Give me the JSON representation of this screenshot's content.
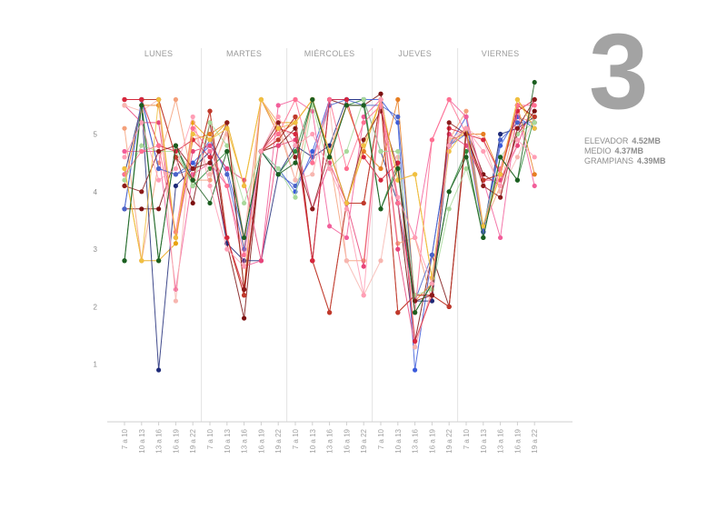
{
  "episode_number": "3",
  "stats": [
    {
      "label": "ELEVADOR",
      "value": "4.52MB"
    },
    {
      "label": "MEDIO",
      "value": "4.37MB"
    },
    {
      "label": "GRAMPIANS",
      "value": "4.39MB"
    }
  ],
  "chart_data": {
    "type": "line",
    "days": [
      "LUNES",
      "MARTES",
      "MIÉRCOLES",
      "JUEVES",
      "VIERNES"
    ],
    "slots": [
      "7 a 10",
      "10 a 13",
      "13 a 16",
      "16 a 19",
      "19 a 22"
    ],
    "yticks": [
      1,
      2,
      3,
      4,
      5
    ],
    "ylim": [
      0,
      5.9
    ],
    "series": [
      {
        "color": "#c0392b",
        "values": [
          5.6,
          5.6,
          5.6,
          4.6,
          4.2,
          5.4,
          3.2,
          2.2,
          4.7,
          4.9,
          5.3,
          2.8,
          1.9,
          3.8,
          3.8,
          5.6,
          1.9,
          2.2,
          2.2,
          2.0,
          5.0,
          4.2,
          4.3,
          5.5,
          5.3
        ]
      },
      {
        "color": "#7b1010",
        "values": [
          3.7,
          3.7,
          3.7,
          4.6,
          3.8,
          5.2,
          3.1,
          1.8,
          4.7,
          4.8,
          5.1,
          2.8,
          5.6,
          5.5,
          5.5,
          5.7,
          3.8,
          1.4,
          2.9,
          2.0,
          5.1,
          4.3,
          4.1,
          5.0,
          5.4
        ]
      },
      {
        "color": "#e8a20c",
        "values": [
          4.4,
          2.8,
          2.8,
          3.1,
          5.2,
          4.9,
          5.2,
          4.1,
          5.6,
          5.2,
          5.2,
          5.6,
          4.7,
          3.8,
          4.7,
          5.6,
          4.2,
          4.3,
          2.5,
          4.8,
          5.1,
          3.4,
          4.3,
          5.6,
          5.2
        ]
      },
      {
        "color": "#f4a07a",
        "values": [
          5.1,
          2.8,
          4.5,
          5.6,
          4.2,
          4.2,
          5.1,
          3.0,
          5.6,
          5.1,
          4.2,
          5.6,
          4.6,
          2.8,
          2.8,
          5.6,
          3.1,
          3.2,
          2.1,
          4.9,
          5.4,
          3.4,
          4.1,
          5.3,
          5.2
        ]
      },
      {
        "color": "#3b5bdb",
        "values": [
          3.7,
          5.6,
          4.4,
          4.3,
          4.5,
          4.8,
          4.4,
          3.2,
          4.7,
          4.4,
          4.0,
          4.7,
          5.6,
          5.6,
          5.6,
          5.6,
          5.2,
          0.9,
          2.9,
          4.8,
          5.3,
          3.3,
          4.8,
          5.3,
          5.1
        ]
      },
      {
        "color": "#1e2a78",
        "values": [
          4.3,
          5.5,
          0.9,
          4.1,
          4.4,
          4.7,
          3.1,
          2.8,
          2.8,
          4.3,
          4.8,
          4.6,
          4.8,
          5.6,
          5.6,
          4.7,
          3.8,
          2.1,
          2.1,
          4.8,
          5.1,
          3.3,
          5.0,
          5.1,
          5.3
        ]
      },
      {
        "color": "#f25e9a",
        "values": [
          4.7,
          4.7,
          4.7,
          2.3,
          4.3,
          4.5,
          4.1,
          2.7,
          2.8,
          5.5,
          5.6,
          5.4,
          3.4,
          3.2,
          5.3,
          5.6,
          3.9,
          3.2,
          4.9,
          5.6,
          5.3,
          4.2,
          3.2,
          5.4,
          4.1
        ]
      },
      {
        "color": "#e8447a",
        "values": [
          5.5,
          5.2,
          5.2,
          3.2,
          4.7,
          4.8,
          4.4,
          4.2,
          2.8,
          4.8,
          4.9,
          3.7,
          4.5,
          3.8,
          2.7,
          5.6,
          3.0,
          1.3,
          2.3,
          5.0,
          4.8,
          4.2,
          4.2,
          4.8,
          5.6
        ]
      },
      {
        "color": "#2e8b3a",
        "values": [
          2.8,
          5.6,
          2.8,
          4.8,
          4.1,
          4.4,
          4.7,
          3.2,
          4.7,
          4.3,
          4.7,
          5.6,
          4.6,
          5.5,
          5.6,
          3.7,
          4.5,
          1.9,
          2.4,
          4.0,
          4.7,
          3.2,
          4.6,
          4.2,
          5.3
        ]
      },
      {
        "color": "#e67e22",
        "values": [
          4.1,
          5.5,
          5.5,
          3.2,
          4.9,
          5.0,
          5.2,
          2.3,
          5.6,
          5.0,
          5.2,
          5.6,
          4.7,
          5.5,
          4.7,
          4.4,
          5.6,
          2.1,
          2.4,
          4.9,
          5.0,
          5.0,
          4.3,
          5.5,
          4.3
        ]
      },
      {
        "color": "#f7b6b0",
        "values": [
          5.5,
          5.4,
          5.6,
          2.1,
          5.1,
          4.3,
          5.0,
          3.2,
          5.6,
          5.2,
          4.2,
          4.3,
          5.5,
          2.8,
          2.2,
          2.8,
          4.6,
          1.3,
          2.3,
          4.9,
          5.1,
          4.9,
          4.0,
          4.6,
          5.3
        ]
      },
      {
        "color": "#4a63c9",
        "values": [
          3.7,
          5.6,
          4.4,
          4.3,
          4.4,
          4.9,
          4.3,
          3.0,
          4.7,
          4.3,
          4.1,
          4.6,
          5.5,
          5.6,
          5.5,
          5.5,
          5.3,
          2.1,
          2.9,
          4.8,
          5.0,
          3.3,
          4.9,
          5.2,
          5.2
        ]
      },
      {
        "color": "#c0392b",
        "values": [
          5.6,
          5.6,
          5.6,
          4.6,
          4.2,
          5.4,
          3.2,
          2.2,
          4.7,
          4.9,
          5.3,
          2.8,
          1.9,
          3.8,
          3.8,
          5.6,
          1.9,
          2.2,
          2.2,
          2.0,
          5.0,
          4.2,
          4.3,
          5.5,
          5.3
        ]
      },
      {
        "color": "#a8d99b",
        "values": [
          4.2,
          4.8,
          4.7,
          4.7,
          4.1,
          5.2,
          4.8,
          3.8,
          4.7,
          4.4,
          3.9,
          5.5,
          4.4,
          4.7,
          5.6,
          4.7,
          4.7,
          2.2,
          2.3,
          3.7,
          4.4,
          3.4,
          4.6,
          5.0,
          5.2
        ]
      },
      {
        "color": "#d7263d",
        "values": [
          5.6,
          5.6,
          4.8,
          4.7,
          4.9,
          4.6,
          3.2,
          2.3,
          4.7,
          5.1,
          5.0,
          2.8,
          5.6,
          5.6,
          4.6,
          4.2,
          4.5,
          1.4,
          2.2,
          5.1,
          5.0,
          4.9,
          4.3,
          5.4,
          5.6
        ]
      },
      {
        "color": "#ff6f91",
        "values": [
          4.3,
          4.7,
          4.8,
          3.3,
          5.1,
          4.7,
          4.1,
          2.9,
          4.7,
          5.0,
          5.6,
          4.5,
          5.6,
          4.4,
          5.2,
          5.5,
          3.8,
          1.9,
          4.9,
          5.6,
          5.0,
          3.4,
          4.4,
          5.5,
          5.5
        ]
      },
      {
        "color": "#8b1a1a",
        "values": [
          4.1,
          4.0,
          4.7,
          4.8,
          4.4,
          4.5,
          5.2,
          2.3,
          4.7,
          5.2,
          4.6,
          3.7,
          4.7,
          3.8,
          4.9,
          5.4,
          4.4,
          2.1,
          2.2,
          5.2,
          5.0,
          4.1,
          3.9,
          5.1,
          5.6
        ]
      },
      {
        "color": "#f0c040",
        "values": [
          4.4,
          2.8,
          5.6,
          3.2,
          5.0,
          4.9,
          5.1,
          4.1,
          5.6,
          5.1,
          5.2,
          5.6,
          4.7,
          3.8,
          4.8,
          5.6,
          4.2,
          4.3,
          2.5,
          4.7,
          5.1,
          3.4,
          4.3,
          5.6,
          5.1
        ]
      },
      {
        "color": "#1b5e20",
        "values": [
          2.8,
          5.5,
          2.8,
          4.8,
          4.2,
          3.8,
          4.7,
          3.2,
          4.7,
          4.3,
          4.5,
          5.6,
          4.6,
          5.5,
          5.5,
          3.7,
          4.4,
          1.9,
          2.4,
          4.0,
          4.6,
          3.2,
          4.6,
          4.2,
          5.9
        ]
      },
      {
        "color": "#ff9eb5",
        "values": [
          4.6,
          5.2,
          4.2,
          4.4,
          5.3,
          4.1,
          3.0,
          2.7,
          4.7,
          5.3,
          4.8,
          5.0,
          4.4,
          3.7,
          2.2,
          5.6,
          3.9,
          3.2,
          2.4,
          4.8,
          5.1,
          4.7,
          4.1,
          4.9,
          4.6
        ]
      }
    ]
  }
}
